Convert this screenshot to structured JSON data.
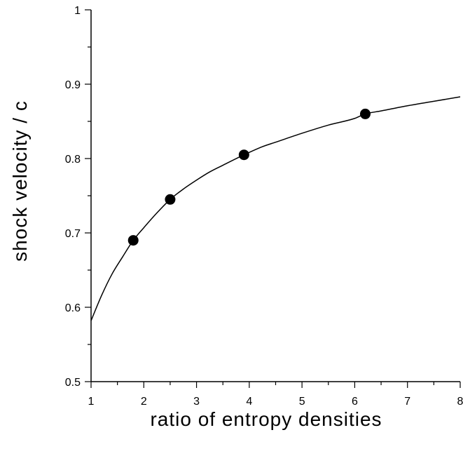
{
  "chart_data": {
    "type": "scatter",
    "title": "",
    "xlabel": "ratio of entropy densities",
    "ylabel": "shock velocity / c",
    "xlim": [
      1,
      8
    ],
    "ylim": [
      0.5,
      1.0
    ],
    "grid": false,
    "x_ticks": [
      1,
      2,
      3,
      4,
      5,
      6,
      7,
      8
    ],
    "x_tick_labels": [
      "1",
      "2",
      "3",
      "4",
      "5",
      "6",
      "7",
      "8"
    ],
    "y_ticks": [
      0.5,
      0.6,
      0.7,
      0.8,
      0.9,
      1.0
    ],
    "y_tick_labels": [
      "0.5",
      "0.6",
      "0.7",
      "0.8",
      "0.9",
      "1"
    ],
    "series": [
      {
        "type": "scatter",
        "marker": "filled-circle",
        "color": "#000000",
        "x": [
          1.8,
          2.5,
          3.9,
          6.2
        ],
        "y": [
          0.69,
          0.745,
          0.805,
          0.86
        ]
      },
      {
        "type": "line",
        "color": "#000000",
        "x": [
          1.0,
          1.2,
          1.4,
          1.6,
          1.8,
          2.0,
          2.25,
          2.5,
          2.75,
          3.0,
          3.25,
          3.5,
          3.9,
          4.25,
          4.5,
          5.0,
          5.5,
          6.0,
          6.2,
          6.5,
          7.0,
          7.5,
          8.0
        ],
        "y": [
          0.582,
          0.616,
          0.645,
          0.668,
          0.69,
          0.707,
          0.727,
          0.745,
          0.759,
          0.771,
          0.782,
          0.791,
          0.805,
          0.816,
          0.822,
          0.834,
          0.845,
          0.854,
          0.86,
          0.864,
          0.871,
          0.877,
          0.883
        ]
      }
    ]
  }
}
